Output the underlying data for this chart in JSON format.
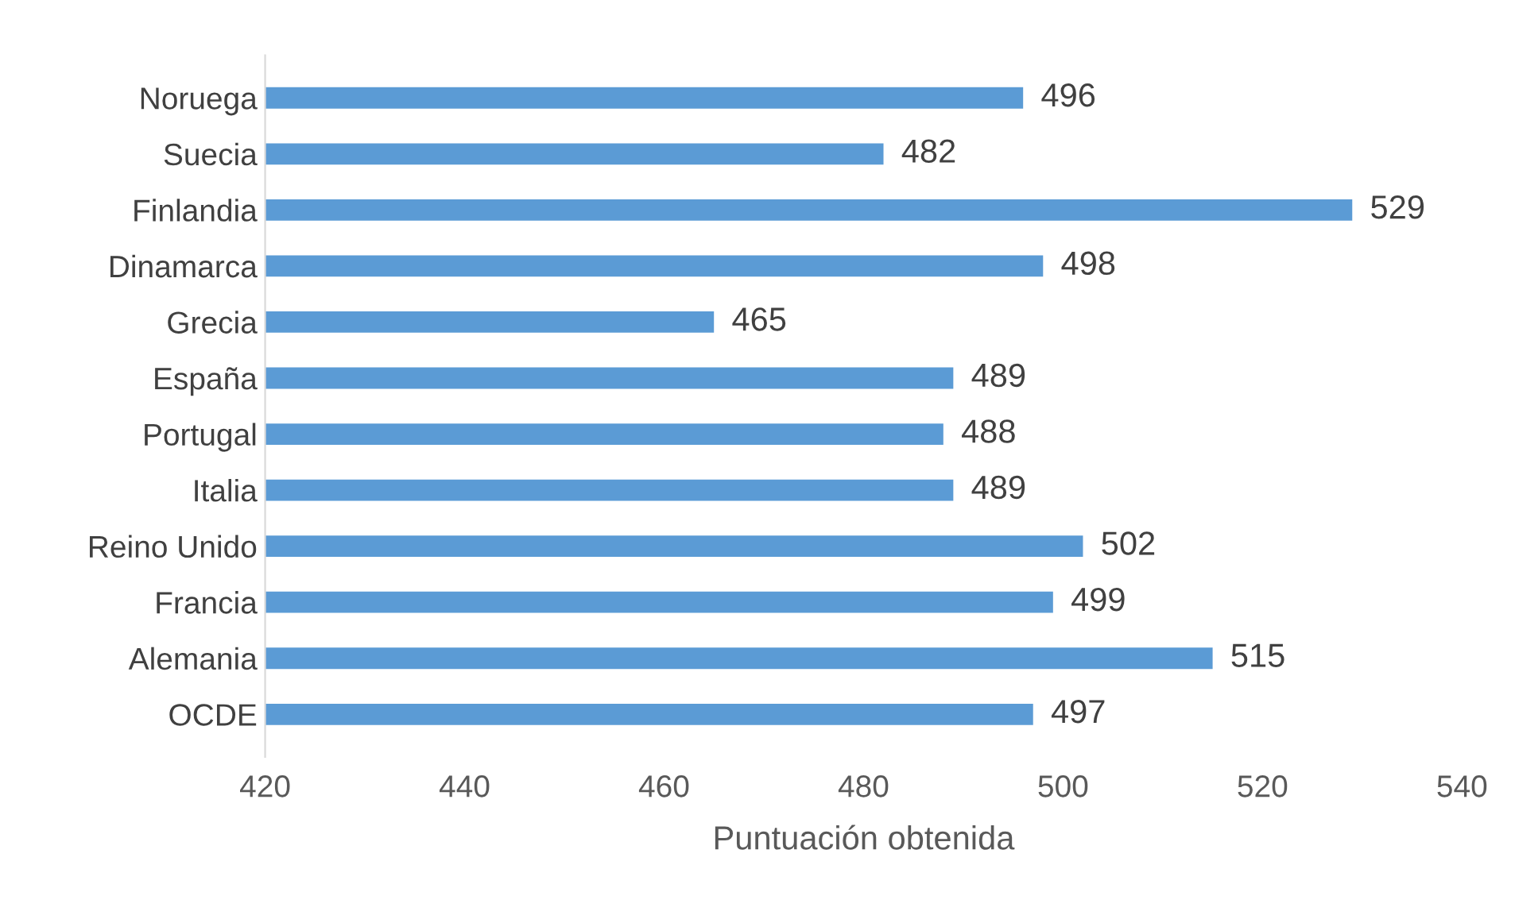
{
  "chart_data": {
    "type": "bar",
    "orientation": "horizontal",
    "xlabel": "Puntuación obtenida",
    "categories": [
      "Noruega",
      "Suecia",
      "Finlandia",
      "Dinamarca",
      "Grecia",
      "España",
      "Portugal",
      "Italia",
      "Reino Unido",
      "Francia",
      "Alemania",
      "OCDE"
    ],
    "values": [
      496,
      482,
      529,
      498,
      465,
      489,
      488,
      489,
      502,
      499,
      515,
      497
    ],
    "color": "#5b9bd5",
    "data_labels": true,
    "xlim": [
      420,
      540
    ],
    "xticks": [
      420,
      440,
      460,
      480,
      500,
      520,
      540
    ],
    "grid": false,
    "legend": false
  }
}
